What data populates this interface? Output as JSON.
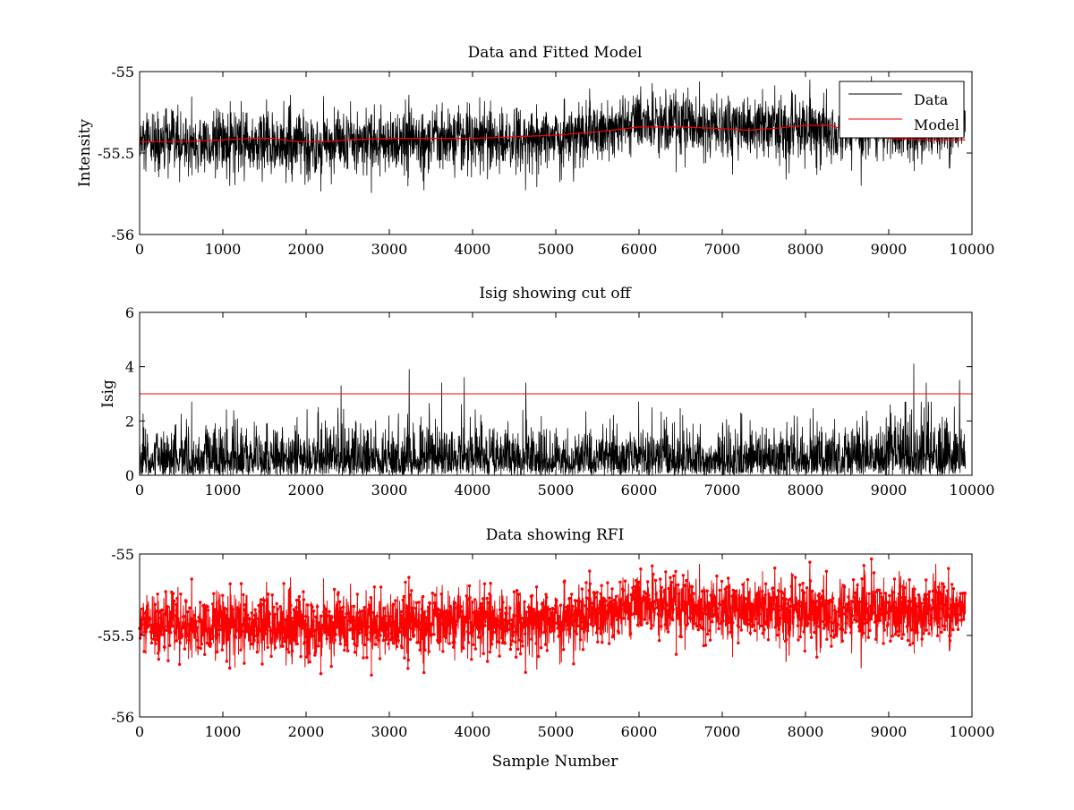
{
  "figure": {
    "background": "#ffffff",
    "colors": {
      "data": "#000000",
      "model": "#ff0000",
      "cutoff": "#ff0000",
      "rfi": "#ff0000"
    }
  },
  "chart_data": [
    {
      "type": "line",
      "title": "Data and Fitted Model",
      "xlabel": "",
      "ylabel": "Intensity",
      "xlim": [
        0,
        10000
      ],
      "ylim": [
        -56,
        -55
      ],
      "xticks": [
        0,
        1000,
        2000,
        3000,
        4000,
        5000,
        6000,
        7000,
        8000,
        9000,
        10000
      ],
      "xtick_labels": [
        "0",
        "1000",
        "2000",
        "3000",
        "4000",
        "5000",
        "6000",
        "7000",
        "8000",
        "9000",
        "10000"
      ],
      "yticks": [
        -56,
        -55.5,
        -55
      ],
      "ytick_labels": [
        "-56",
        "-55.5",
        "-55"
      ],
      "grid": false,
      "legend_position": "top-right",
      "series": [
        {
          "name": "Data",
          "color": "#000000",
          "kind": "noisy-line",
          "n_samples": 9920,
          "x_range": [
            0,
            9920
          ],
          "mean_curve": {
            "x": [
              0,
              1000,
              2000,
              3000,
              4000,
              5000,
              5500,
              6000,
              7000,
              8000,
              8500,
              9000,
              9920
            ],
            "y": [
              -55.45,
              -55.44,
              -55.45,
              -55.43,
              -55.42,
              -55.4,
              -55.37,
              -55.32,
              -55.33,
              -55.34,
              -55.35,
              -55.35,
              -55.36
            ]
          },
          "noise_std": 0.1,
          "observed_min": -55.82,
          "observed_max": -55.03
        },
        {
          "name": "Model",
          "color": "#ff0000",
          "kind": "line",
          "x": [
            0,
            500,
            1000,
            1300,
            1600,
            1900,
            2200,
            2500,
            3000,
            3500,
            4000,
            4500,
            5000,
            5500,
            6000,
            6500,
            7000,
            7300,
            7600,
            8000,
            8300,
            8600,
            9000,
            9500,
            9920
          ],
          "y": [
            -55.43,
            -55.43,
            -55.42,
            -55.41,
            -55.41,
            -55.43,
            -55.43,
            -55.42,
            -55.41,
            -55.41,
            -55.41,
            -55.4,
            -55.39,
            -55.37,
            -55.34,
            -55.34,
            -55.35,
            -55.36,
            -55.35,
            -55.33,
            -55.33,
            -55.38,
            -55.41,
            -55.42,
            -55.42
          ]
        }
      ]
    },
    {
      "type": "line",
      "title": "Isig showing cut off",
      "xlabel": "",
      "ylabel": "Isig",
      "xlim": [
        0,
        10000
      ],
      "ylim": [
        0,
        6
      ],
      "xticks": [
        0,
        1000,
        2000,
        3000,
        4000,
        5000,
        6000,
        7000,
        8000,
        9000,
        10000
      ],
      "xtick_labels": [
        "0",
        "1000",
        "2000",
        "3000",
        "4000",
        "5000",
        "6000",
        "7000",
        "8000",
        "9000",
        "10000"
      ],
      "yticks": [
        0,
        2,
        4,
        6
      ],
      "ytick_labels": [
        "0",
        "2",
        "4",
        "6"
      ],
      "grid": false,
      "series": [
        {
          "color": "#000000",
          "kind": "noisy-abs",
          "n_samples": 9920,
          "x_range": [
            0,
            9920
          ],
          "typical_max": 2.7,
          "spikes": [
            {
              "x": 2420,
              "y": 3.3
            },
            {
              "x": 3240,
              "y": 3.9
            },
            {
              "x": 3630,
              "y": 3.4
            },
            {
              "x": 3900,
              "y": 3.6
            },
            {
              "x": 4640,
              "y": 3.4
            },
            {
              "x": 9300,
              "y": 4.1
            },
            {
              "x": 9450,
              "y": 3.4
            },
            {
              "x": 9850,
              "y": 3.5
            }
          ]
        },
        {
          "name": "cut off",
          "color": "#ff0000",
          "kind": "hline",
          "y": 3
        }
      ]
    },
    {
      "type": "line",
      "title": "Data showing RFI",
      "xlabel": "Sample Number",
      "ylabel": "",
      "xlim": [
        0,
        10000
      ],
      "ylim": [
        -56,
        -55
      ],
      "xticks": [
        0,
        1000,
        2000,
        3000,
        4000,
        5000,
        6000,
        7000,
        8000,
        9000,
        10000
      ],
      "xtick_labels": [
        "0",
        "1000",
        "2000",
        "3000",
        "4000",
        "5000",
        "6000",
        "7000",
        "8000",
        "9000",
        "10000"
      ],
      "yticks": [
        -56,
        -55.5,
        -55
      ],
      "ytick_labels": [
        "-56",
        "-55.5",
        "-55"
      ],
      "grid": false,
      "series": [
        {
          "color": "#000000",
          "kind": "noisy-line",
          "n_samples": 9920,
          "x_range": [
            0,
            9920
          ],
          "mean_curve": {
            "x": [
              0,
              1000,
              2000,
              3000,
              4000,
              5000,
              5500,
              6000,
              7000,
              8000,
              8500,
              9000,
              9920
            ],
            "y": [
              -55.45,
              -55.44,
              -55.45,
              -55.43,
              -55.42,
              -55.4,
              -55.37,
              -55.32,
              -55.33,
              -55.34,
              -55.35,
              -55.35,
              -55.36
            ]
          },
          "noise_std": 0.1
        },
        {
          "color": "#ff0000",
          "kind": "marker-line",
          "marker": "dot",
          "n_samples": 9920,
          "x_range": [
            0,
            9920
          ],
          "observed_min": -55.83,
          "observed_max": -55.0
        }
      ]
    }
  ]
}
